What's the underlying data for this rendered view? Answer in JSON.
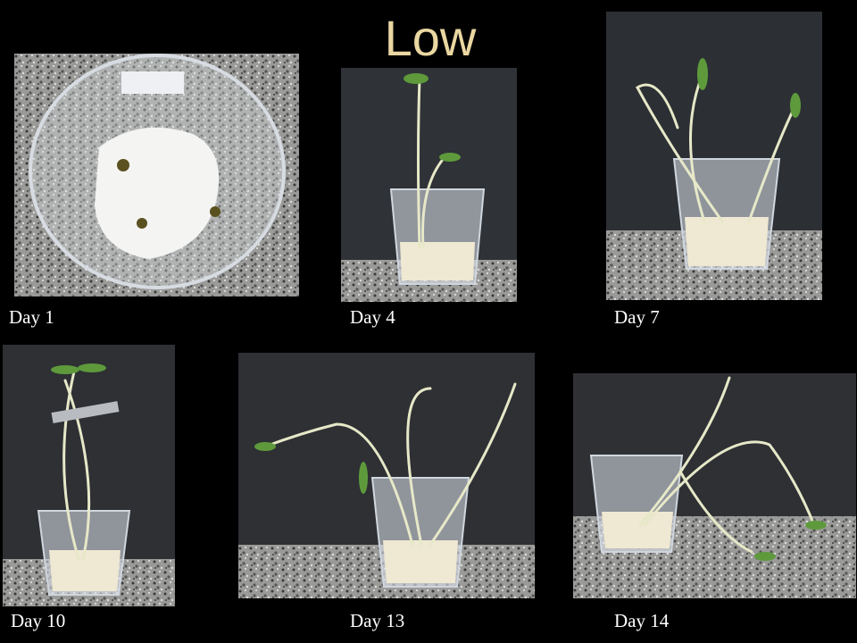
{
  "title": "Low",
  "panels": [
    {
      "label": "Day 1"
    },
    {
      "label": "Day 4"
    },
    {
      "label": "Day 7"
    },
    {
      "label": "Day 10"
    },
    {
      "label": "Day 13"
    },
    {
      "label": "Day 14"
    }
  ]
}
